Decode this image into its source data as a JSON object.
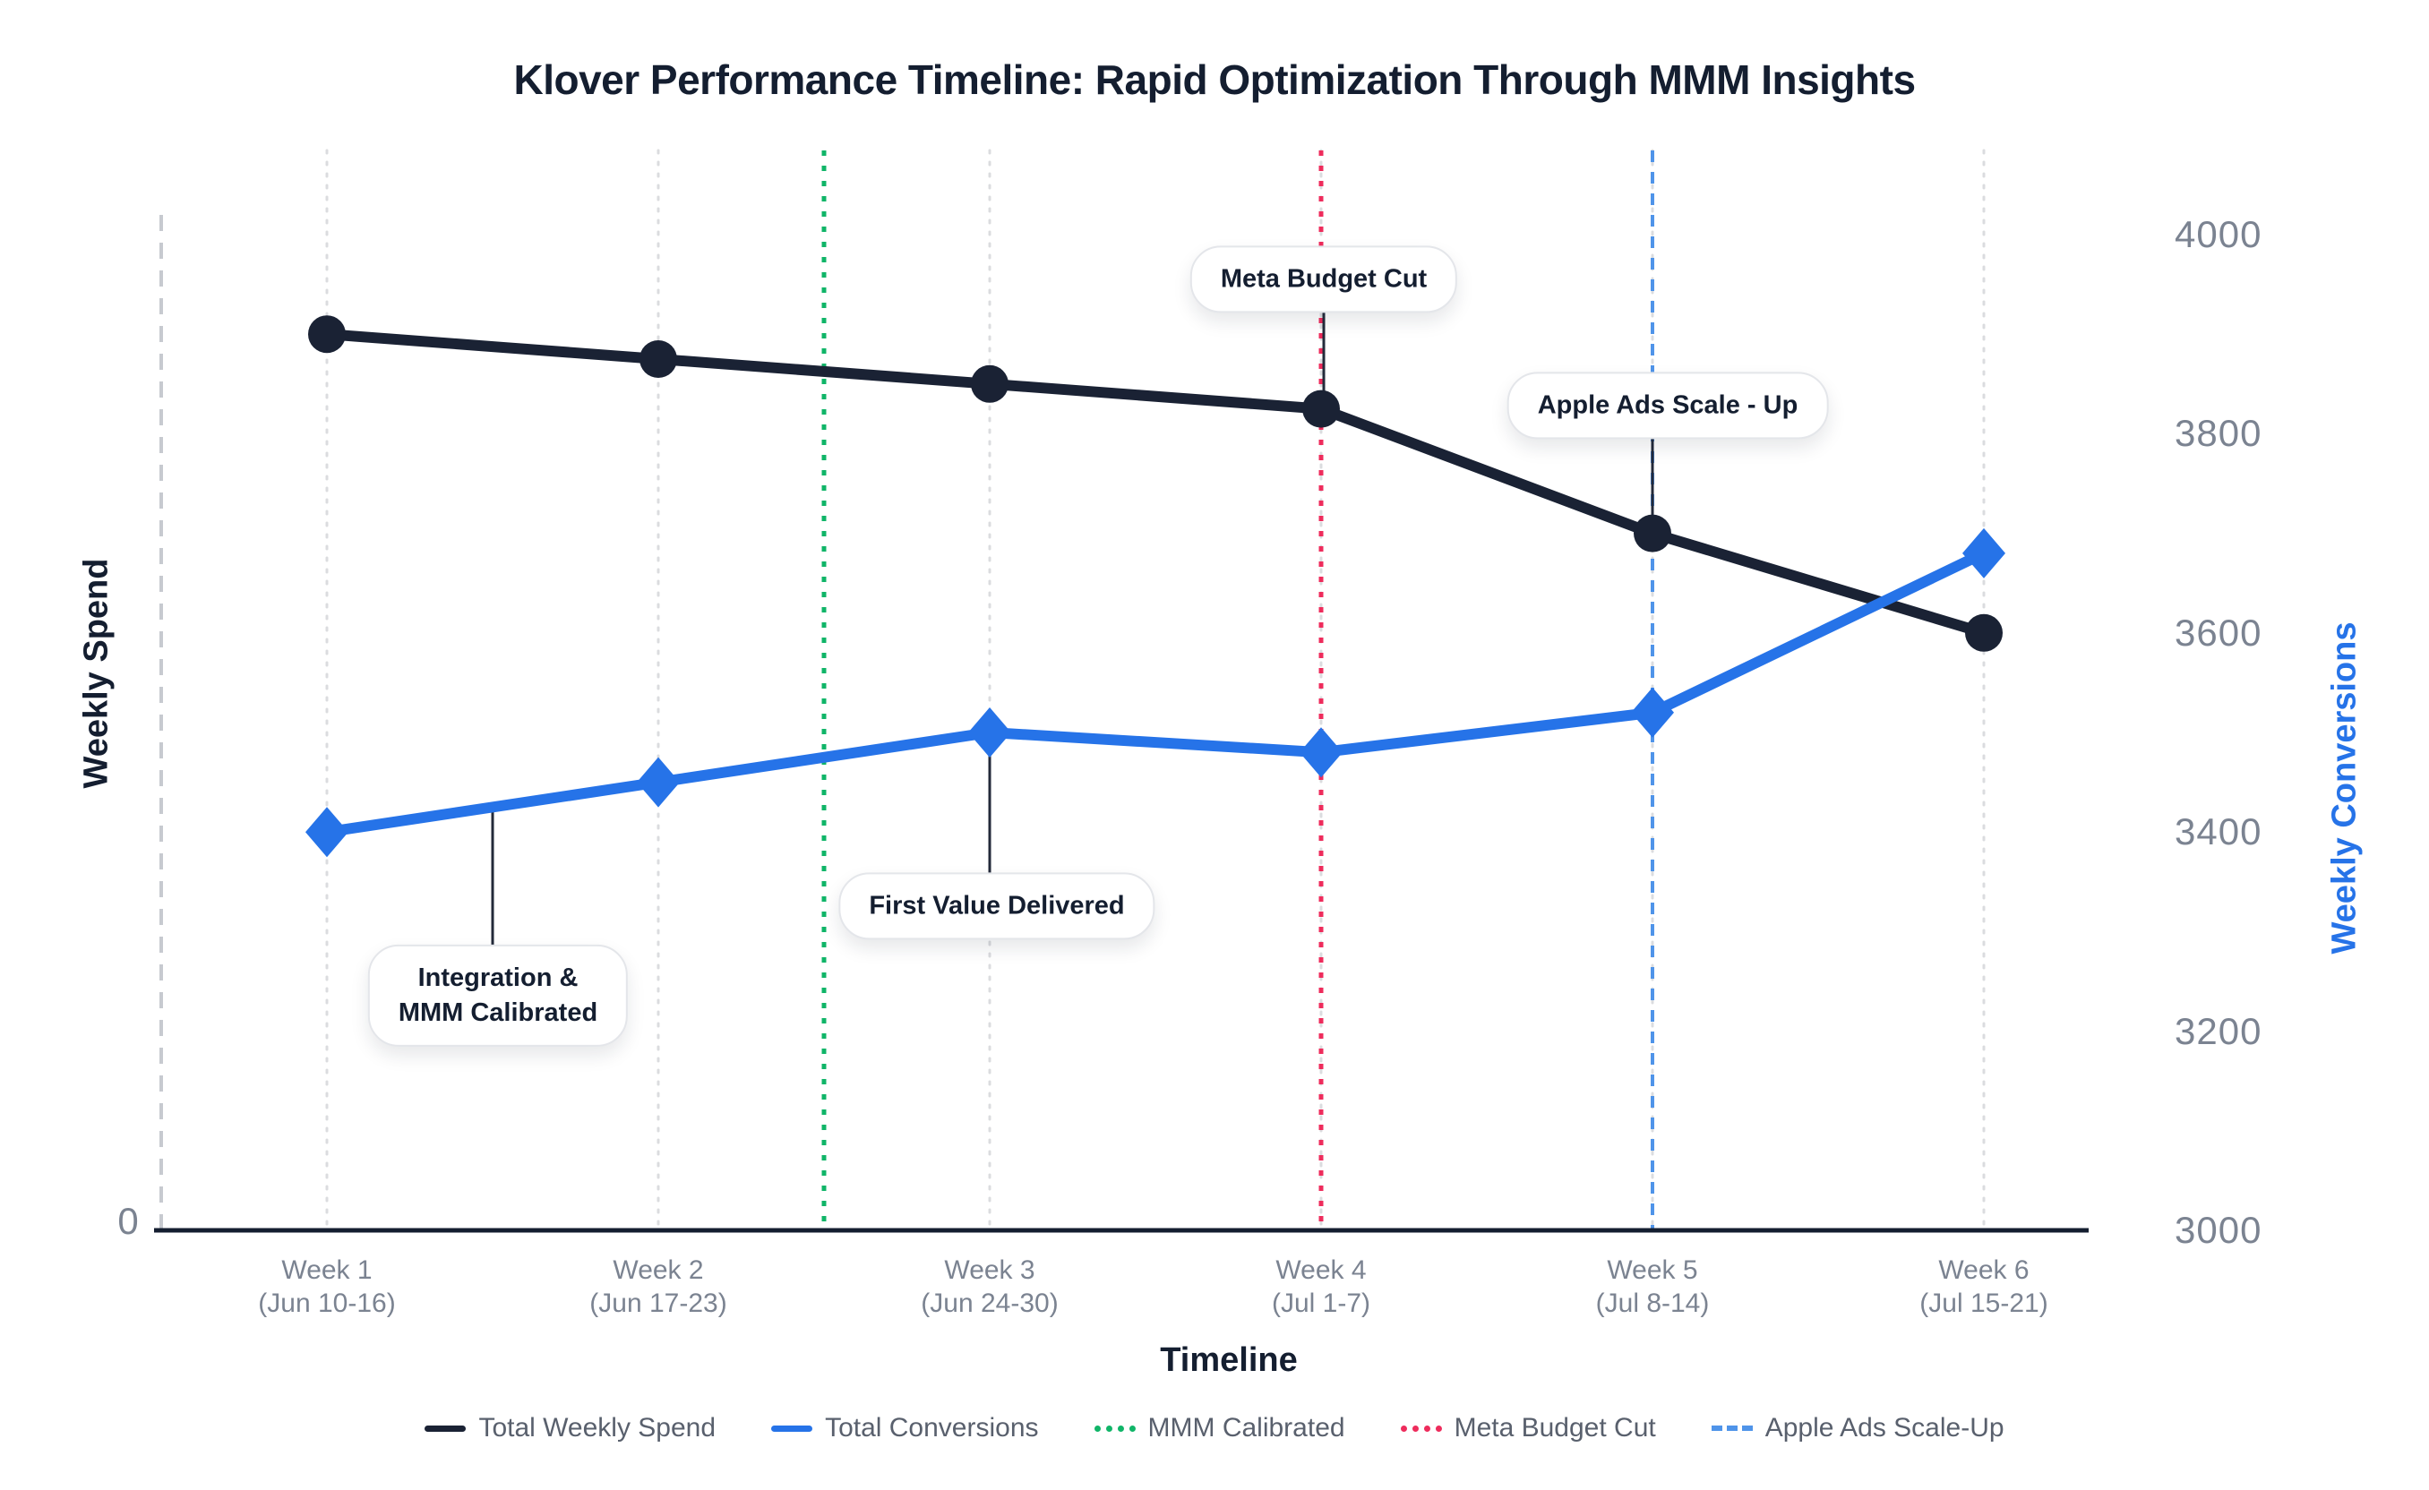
{
  "title": "Klover Performance Timeline: Rapid Optimization Through MMM Insights",
  "axes": {
    "x_label": "Timeline",
    "y_left_label": "Weekly Spend",
    "y_left_tick": "0",
    "y_right_label": "Weekly Conversions",
    "y_right_ticks": [
      3000,
      3200,
      3400,
      3600,
      3800,
      4000
    ]
  },
  "chart_data": {
    "type": "line",
    "categories": [
      {
        "line1": "Week 1",
        "line2": "(Jun 10-16)"
      },
      {
        "line1": "Week 2",
        "line2": "(Jun 17-23)"
      },
      {
        "line1": "Week 3",
        "line2": "(Jun 24-30)"
      },
      {
        "line1": "Week 4",
        "line2": "(Jul 1-7)"
      },
      {
        "line1": "Week 5",
        "line2": "(Jul 8-14)"
      },
      {
        "line1": "Week 6",
        "line2": "(Jul 15-21)"
      }
    ],
    "series": [
      {
        "name": "Total Weekly Spend",
        "marker": "circle",
        "color": "#1a2234",
        "axis": "left",
        "note": "left axis unlabeled except 0; values estimated on right-axis scale",
        "values": [
          3900,
          3875,
          3850,
          3825,
          3700,
          3600
        ]
      },
      {
        "name": "Total Conversions",
        "marker": "diamond",
        "color": "#2673e8",
        "axis": "right",
        "values": [
          3400,
          3450,
          3500,
          3480,
          3520,
          3680
        ]
      }
    ],
    "event_lines": [
      {
        "name": "MMM Calibrated",
        "color": "#10b568",
        "style": "dotted",
        "week_position": 2.5
      },
      {
        "name": "Meta Budget Cut",
        "color": "#ee2c5c",
        "style": "dotted",
        "week_position": 4
      },
      {
        "name": "Apple Ads Scale-Up",
        "color": "#4f94e9",
        "style": "dashed",
        "week_position": 5
      }
    ],
    "ylim_right": [
      3000,
      4000
    ],
    "grid": "vertical dotted per week",
    "legend_position": "bottom"
  },
  "annotations": [
    {
      "id": "integration",
      "text": "Integration &\nMMM Calibrated",
      "anchor_series": "conversions",
      "anchor_week_position": 1.5
    },
    {
      "id": "first-value",
      "text": "First Value Delivered",
      "anchor_series": "conversions",
      "anchor_week_position": 3
    },
    {
      "id": "meta-cut",
      "text": "Meta Budget Cut",
      "anchor_series": "spend",
      "anchor_week_position": 4
    },
    {
      "id": "apple-scale",
      "text": "Apple Ads Scale - Up",
      "anchor_series": "spend",
      "anchor_week_position": 5
    }
  ],
  "legend": {
    "items": [
      {
        "label": "Total Weekly Spend",
        "swatch": "solid",
        "color": "#1a2234"
      },
      {
        "label": "Total Conversions",
        "swatch": "solid",
        "color": "#2673e8"
      },
      {
        "label": "MMM Calibrated",
        "swatch": "dotted",
        "color": "#10b568"
      },
      {
        "label": "Meta Budget Cut",
        "swatch": "dotted",
        "color": "#ee2c5c"
      },
      {
        "label": "Apple Ads Scale-Up",
        "swatch": "dashed",
        "color": "#4f94e9"
      }
    ]
  },
  "colors": {
    "ink": "#141e30",
    "axis_text": "#7b8391",
    "legend_text": "#59606d",
    "grid_dotted": "#dbdcdf",
    "left_dashed_axis": "#c7cad0"
  }
}
